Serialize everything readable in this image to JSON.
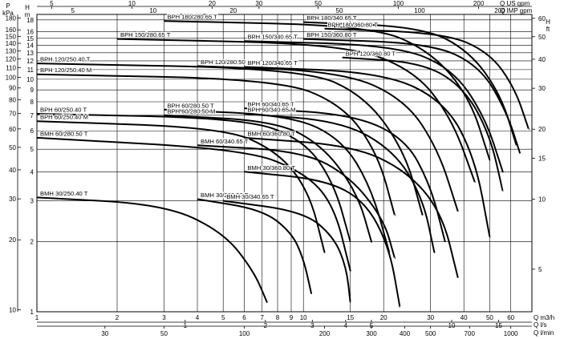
{
  "chart_data": {
    "type": "line",
    "title": "",
    "x_scale": "log",
    "y_scale": "log",
    "xlim_m3h": [
      1,
      72
    ],
    "ylim_m": [
      1,
      19
    ],
    "grid": true,
    "axes": {
      "top_us_gpm": {
        "unit_label": "Q US gpm",
        "ticks": [
          "5",
          "10",
          "20",
          "30",
          "50",
          "100",
          "200"
        ],
        "tick_values": [
          5,
          10,
          20,
          30,
          50,
          100,
          200
        ]
      },
      "top_imp_gpm": {
        "unit_label": "Q IMP gpm",
        "ticks": [
          "5",
          "10",
          "20",
          "50",
          "100",
          "200"
        ],
        "tick_values": [
          5,
          10,
          20,
          50,
          100,
          200
        ]
      },
      "bottom_m3h": {
        "unit_label": "Q m3/h",
        "ticks": [
          "1",
          "2",
          "3",
          "4",
          "5",
          "6",
          "7",
          "8",
          "9",
          "10",
          "15",
          "20",
          "30",
          "40",
          "50",
          "60"
        ],
        "tick_values": [
          1,
          2,
          3,
          4,
          5,
          6,
          7,
          8,
          9,
          10,
          15,
          20,
          30,
          40,
          50,
          60
        ]
      },
      "bottom_ls": {
        "unit_label": "Q l/s",
        "ticks": [
          "1",
          "2",
          "3",
          "4",
          "5",
          "10",
          "15"
        ],
        "tick_values": [
          1,
          2,
          3,
          4,
          5,
          10,
          15
        ]
      },
      "bottom_lmin": {
        "unit_label": "Q l/min",
        "ticks": [
          "30",
          "50",
          "100",
          "200",
          "300",
          "400",
          "500",
          "700",
          "1000"
        ],
        "tick_values": [
          30,
          50,
          100,
          200,
          300,
          400,
          500,
          700,
          1000
        ]
      },
      "left_kpa": {
        "label_lines": [
          "P",
          "kPa"
        ],
        "ticks": [
          "10",
          "20",
          "30",
          "40",
          "50",
          "60",
          "70",
          "80",
          "90",
          "100",
          "110",
          "120",
          "130",
          "140",
          "150",
          "160",
          "180"
        ],
        "tick_values": [
          10,
          20,
          30,
          40,
          50,
          60,
          70,
          80,
          90,
          100,
          110,
          120,
          130,
          140,
          150,
          160,
          180
        ]
      },
      "left_m": {
        "label_lines": [
          "H",
          "m"
        ],
        "ticks": [
          "1",
          "2",
          "3",
          "4",
          "5",
          "6",
          "7",
          "8",
          "9",
          "10",
          "11",
          "12",
          "13",
          "14",
          "15",
          "16",
          "18"
        ],
        "tick_values": [
          1,
          2,
          3,
          4,
          5,
          6,
          7,
          8,
          9,
          10,
          11,
          12,
          13,
          14,
          15,
          16,
          18
        ]
      },
      "right_ft": {
        "label_lines": [
          "H",
          "ft"
        ],
        "ticks": [
          "5",
          "10",
          "15",
          "20",
          "30",
          "40",
          "50",
          "60"
        ],
        "tick_values": [
          5,
          10,
          15,
          20,
          30,
          40,
          50,
          60
        ]
      }
    },
    "series": [
      {
        "name": "BMH 30/250.40 T",
        "x": [
          1,
          3,
          5,
          6.5,
          7.3
        ],
        "y": [
          3.1,
          2.9,
          2.2,
          1.5,
          1.1
        ]
      },
      {
        "name": "BMH 30/280.50 T",
        "x": [
          4,
          7,
          9,
          10,
          10.7
        ],
        "y": [
          3.05,
          2.75,
          2.2,
          1.7,
          1.2
        ]
      },
      {
        "name": "BMH 30/340.65 T",
        "x": [
          5,
          10,
          13,
          14.5,
          15
        ],
        "y": [
          3.0,
          2.7,
          2.1,
          1.55,
          1.1
        ]
      },
      {
        "name": "BMH 30/360.80 T",
        "x": [
          6,
          12,
          17,
          21,
          23
        ],
        "y": [
          4.0,
          3.7,
          3.0,
          1.9,
          1.05
        ]
      },
      {
        "name": "BMH 60/280.50 T",
        "x": [
          1,
          6,
          10,
          13,
          15
        ],
        "y": [
          5.6,
          5.0,
          4.0,
          2.9,
          1.5
        ]
      },
      {
        "name": "BMH 60/340.65 T",
        "x": [
          4,
          10,
          15,
          20,
          22
        ],
        "y": [
          5.2,
          4.9,
          3.8,
          2.5,
          1.7
        ]
      },
      {
        "name": "BMH 60/360.80 T",
        "x": [
          6,
          15,
          24,
          33,
          38
        ],
        "y": [
          5.6,
          5.2,
          4.1,
          2.7,
          1.4
        ]
      },
      {
        "name": "BPH 60/250.40 M",
        "x": [
          1,
          5,
          8,
          10.5,
          12
        ],
        "y": [
          6.6,
          6.2,
          4.9,
          3.3,
          1.8
        ]
      },
      {
        "name": "BPH 60/250.40 T",
        "x": [
          1,
          6,
          10,
          13,
          15
        ],
        "y": [
          7.1,
          6.8,
          5.5,
          3.6,
          2.0
        ]
      },
      {
        "name": "BPH 60/280.50 M",
        "x": [
          3,
          8,
          12,
          16,
          18
        ],
        "y": [
          7.0,
          6.6,
          5.1,
          3.2,
          2.0
        ]
      },
      {
        "name": "BPH 60/280.50 T",
        "x": [
          3,
          9,
          14,
          18,
          21
        ],
        "y": [
          7.4,
          7.0,
          5.5,
          3.4,
          1.8
        ]
      },
      {
        "name": "BPH 60/340.65 M",
        "x": [
          6,
          14,
          22,
          28,
          31
        ],
        "y": [
          7.1,
          6.6,
          4.9,
          3.1,
          1.8
        ]
      },
      {
        "name": "BPH 60/340.65 T",
        "x": [
          6,
          15,
          24,
          30,
          34
        ],
        "y": [
          7.5,
          7.1,
          5.6,
          3.5,
          2.0
        ]
      },
      {
        "name": "BPH 120/250.40 M",
        "x": [
          1,
          8,
          14,
          19,
          22
        ],
        "y": [
          10.5,
          10.0,
          7.8,
          4.8,
          2.6
        ]
      },
      {
        "name": "BPH 120/250.40 T",
        "x": [
          1,
          10,
          17,
          24,
          28
        ],
        "y": [
          11.7,
          11.1,
          8.5,
          4.9,
          2.6
        ]
      },
      {
        "name": "BPH 120/280.50 T",
        "x": [
          4,
          14,
          24,
          32,
          38
        ],
        "y": [
          11.4,
          10.8,
          8.2,
          5.0,
          2.7
        ]
      },
      {
        "name": "BPH 120/340.65 T",
        "x": [
          6,
          20,
          34,
          44,
          50
        ],
        "y": [
          11.3,
          10.7,
          8.0,
          4.6,
          2.1
        ]
      },
      {
        "name": "BPH 120/360.80 T",
        "x": [
          14,
          28,
          40,
          50,
          56
        ],
        "y": [
          12.4,
          11.8,
          9.2,
          5.8,
          3.3
        ]
      },
      {
        "name": "BPH 150/280.65 T",
        "x": [
          2,
          14,
          26,
          36,
          44
        ],
        "y": [
          14.9,
          14.2,
          11.0,
          6.8,
          3.6
        ]
      },
      {
        "name": "BPH 150/340.65 T",
        "x": [
          6,
          22,
          36,
          48,
          56
        ],
        "y": [
          14.6,
          14.0,
          11.2,
          6.9,
          4.0
        ]
      },
      {
        "name": "BPH 150/360.80 T",
        "x": [
          10,
          30,
          46,
          58,
          65
        ],
        "y": [
          14.9,
          14.3,
          11.4,
          7.2,
          4.8
        ]
      },
      {
        "name": "BPH 180/280.65 T",
        "x": [
          3,
          18,
          30,
          42,
          50
        ],
        "y": [
          17.8,
          17.0,
          13.2,
          8.4,
          4.5
        ]
      },
      {
        "name": "BPH 180/340.65 T",
        "x": [
          10,
          28,
          42,
          55,
          63
        ],
        "y": [
          17.6,
          16.8,
          13.2,
          8.6,
          5.2
        ]
      },
      {
        "name": "BPH 180/360.80 T",
        "x": [
          12,
          34,
          50,
          62,
          70
        ],
        "y": [
          16.5,
          15.8,
          13.0,
          9.2,
          6.1
        ]
      }
    ]
  }
}
